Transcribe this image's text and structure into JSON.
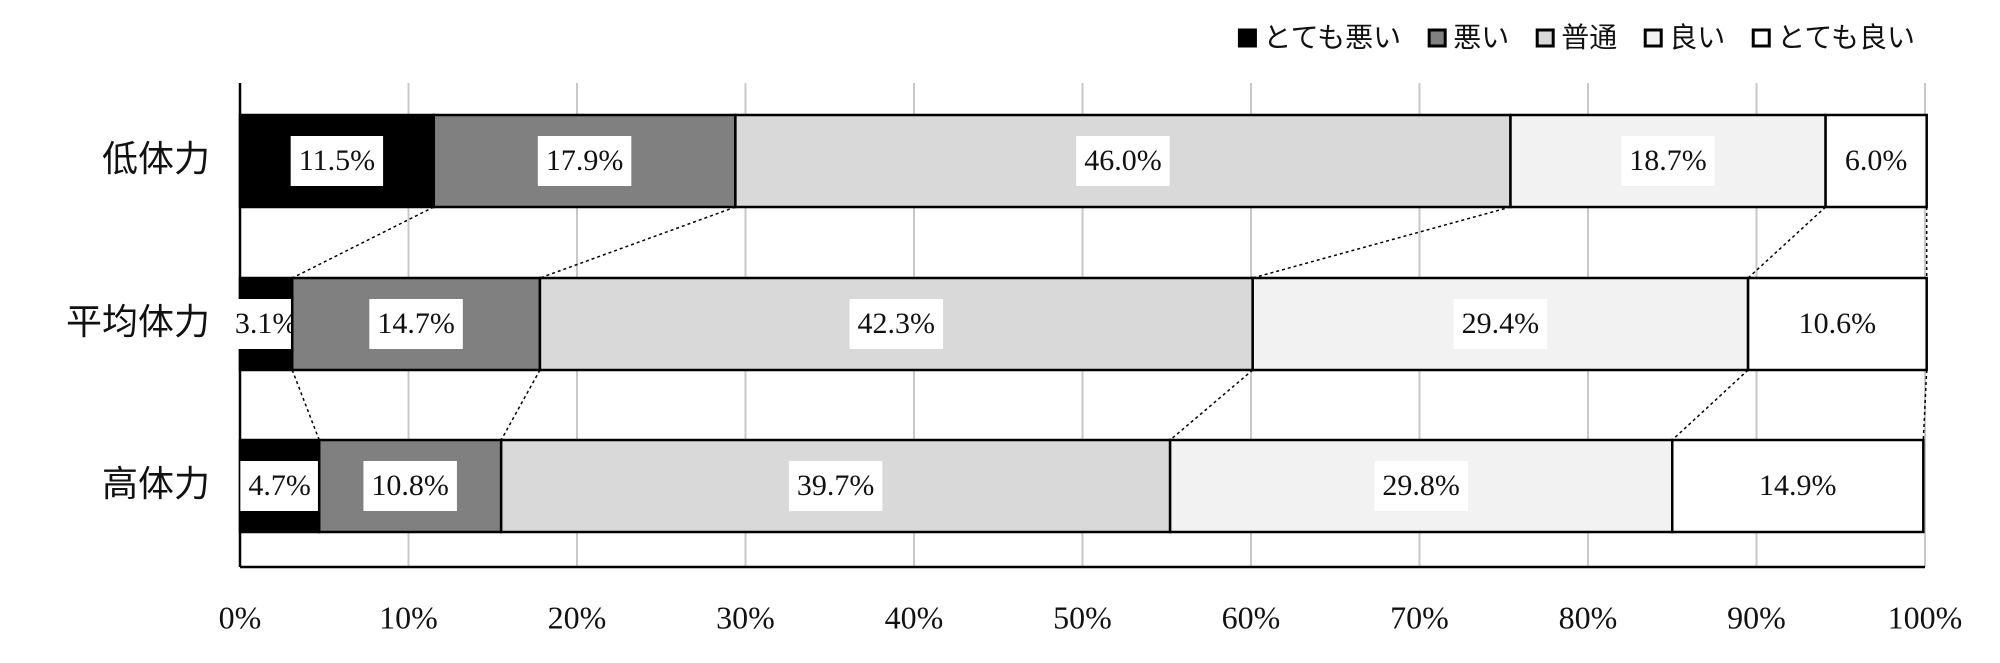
{
  "chart_data": {
    "type": "stacked-bar-horizontal",
    "categories": [
      "低体力",
      "平均体力",
      "高体力"
    ],
    "series": [
      {
        "name": "とても悪い",
        "color": "#000000",
        "values": [
          11.5,
          3.1,
          4.7
        ],
        "value_labels": [
          "11.5%",
          "3.1%",
          "4.7%"
        ]
      },
      {
        "name": "悪い",
        "color": "#808080",
        "values": [
          17.9,
          14.7,
          10.8
        ],
        "value_labels": [
          "17.9%",
          "14.7%",
          "10.8%"
        ]
      },
      {
        "name": "普通",
        "color": "#d9d9d9",
        "values": [
          46.0,
          42.3,
          39.7
        ],
        "value_labels": [
          "46.0%",
          "42.3%",
          "39.7%"
        ]
      },
      {
        "name": "良い",
        "color": "#f2f2f2",
        "values": [
          18.7,
          29.4,
          29.8
        ],
        "value_labels": [
          "18.7%",
          "29.4%",
          "29.8%"
        ]
      },
      {
        "name": "とても良い",
        "color": "#ffffff",
        "values": [
          6.0,
          10.6,
          14.9
        ],
        "value_labels": [
          "6.0%",
          "10.6%",
          "14.9%"
        ]
      }
    ],
    "xlim": [
      0,
      100
    ],
    "xticks": [
      {
        "value": 0,
        "label": "0%"
      },
      {
        "value": 10,
        "label": "10%"
      },
      {
        "value": 20,
        "label": "20%"
      },
      {
        "value": 30,
        "label": "30%"
      },
      {
        "value": 40,
        "label": "40%"
      },
      {
        "value": 50,
        "label": "50%"
      },
      {
        "value": 60,
        "label": "60%"
      },
      {
        "value": 70,
        "label": "70%"
      },
      {
        "value": 80,
        "label": "80%"
      },
      {
        "value": 90,
        "label": "90%"
      },
      {
        "value": 100,
        "label": "100%"
      }
    ],
    "grid": true,
    "legend": "top-right"
  }
}
